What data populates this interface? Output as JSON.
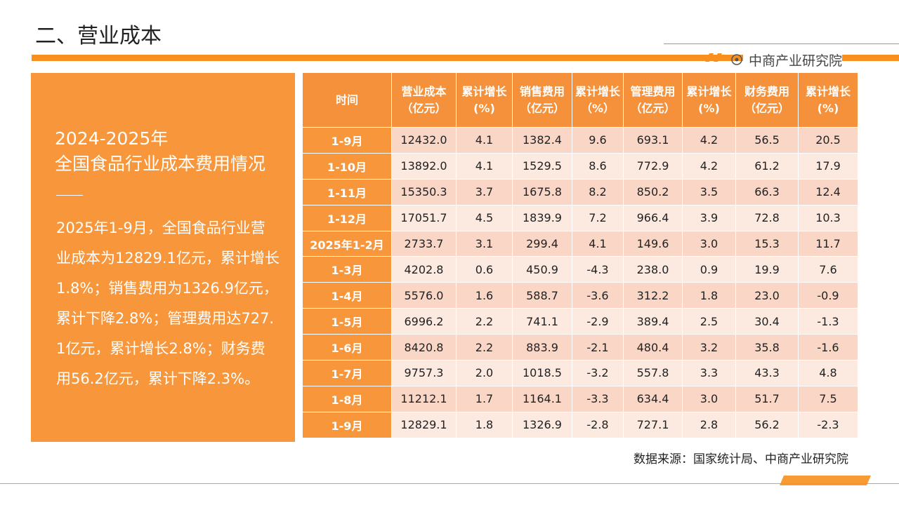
{
  "header": {
    "title": "二、营业成本",
    "brand": "中商产业研究院"
  },
  "panel": {
    "title_lines": [
      "2024-2025年",
      "全国食品行业成本费用情况"
    ],
    "body": "2025年1-9月，全国食品行业营业成本为12829.1亿元，累计增长1.8%；销售费用为1326.9亿元，累计下降2.8%；管理费用达727.1亿元，累计增长2.8%；财务费用56.2亿元，累计下降2.3%。"
  },
  "table": {
    "columns": [
      "时间",
      "营业成本（亿元）",
      "累计增长(%)",
      "销售费用（亿元）",
      "累计增长（%）",
      "管理费用（亿元）",
      "累计增长(%)",
      "财务费用（亿元）",
      "累计增长(%)"
    ],
    "rows": [
      [
        "1-9月",
        "12432.0",
        "4.1",
        "1382.4",
        "9.6",
        "693.1",
        "4.2",
        "56.5",
        "20.5"
      ],
      [
        "1-10月",
        "13892.0",
        "4.1",
        "1529.5",
        "8.6",
        "772.9",
        "4.2",
        "61.2",
        "17.9"
      ],
      [
        "1-11月",
        "15350.3",
        "3.7",
        "1675.8",
        "8.2",
        "850.2",
        "3.5",
        "66.3",
        "12.4"
      ],
      [
        "1-12月",
        "17051.7",
        "4.5",
        "1839.9",
        "7.2",
        "966.4",
        "3.9",
        "72.8",
        "10.3"
      ],
      [
        "2025年1-2月",
        "2733.7",
        "3.1",
        "299.4",
        "4.1",
        "149.6",
        "3.0",
        "15.3",
        "11.7"
      ],
      [
        "1-3月",
        "4202.8",
        "0.6",
        "450.9",
        "-4.3",
        "238.0",
        "0.9",
        "19.9",
        "7.6"
      ],
      [
        "1-4月",
        "5576.0",
        "1.6",
        "588.7",
        "-3.6",
        "312.2",
        "1.8",
        "23.0",
        "-0.9"
      ],
      [
        "1-5月",
        "6996.2",
        "2.2",
        "741.1",
        "-2.9",
        "389.4",
        "2.5",
        "30.4",
        "-1.3"
      ],
      [
        "1-6月",
        "8420.8",
        "2.2",
        "883.9",
        "-2.1",
        "480.4",
        "3.2",
        "35.8",
        "-1.6"
      ],
      [
        "1-7月",
        "9757.3",
        "2.0",
        "1018.5",
        "-3.2",
        "557.8",
        "3.3",
        "43.3",
        "4.8"
      ],
      [
        "1-8月",
        "11212.1",
        "1.7",
        "1164.1",
        "-3.3",
        "634.4",
        "3.0",
        "51.7",
        "7.5"
      ],
      [
        "1-9月",
        "12829.1",
        "1.8",
        "1326.9",
        "-2.8",
        "727.1",
        "2.8",
        "56.2",
        "-2.3"
      ]
    ]
  },
  "footer": {
    "source": "数据来源：国家统计局、中商产业研究院"
  }
}
